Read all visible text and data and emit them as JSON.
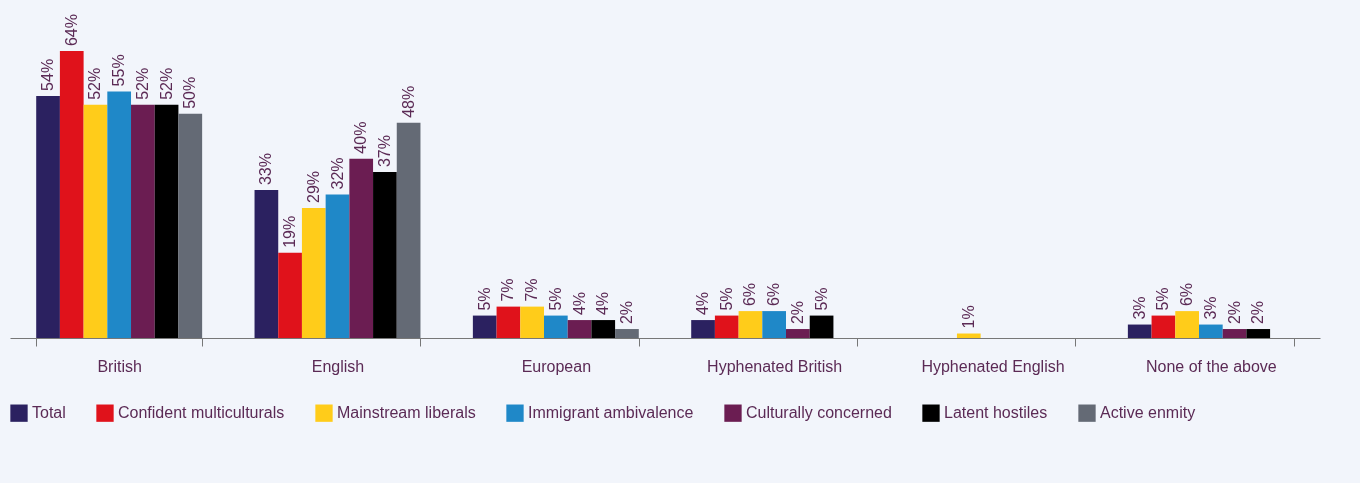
{
  "chart_data": {
    "type": "bar",
    "categories": [
      "British",
      "English",
      "European",
      "Hyphenated British",
      "Hyphenated English",
      "None of the above"
    ],
    "series": [
      {
        "name": "Total",
        "color": "#2b2160",
        "values": [
          54,
          33,
          5,
          4,
          null,
          3
        ],
        "value_labels": [
          "54%",
          "33%",
          "5%",
          "4%",
          null,
          "3%"
        ]
      },
      {
        "name": "Confident multiculturals",
        "color": "#e0121b",
        "values": [
          64,
          19,
          7,
          5,
          null,
          5
        ],
        "value_labels": [
          "64%",
          "19%",
          "7%",
          "5%",
          null,
          "5%"
        ]
      },
      {
        "name": "Mainstream liberals",
        "color": "#ffcc1a",
        "values": [
          52,
          29,
          7,
          6,
          1,
          6
        ],
        "value_labels": [
          "52%",
          "29%",
          "7%",
          "6%",
          "1%",
          "6%"
        ]
      },
      {
        "name": "Immigrant ambivalence",
        "color": "#1f88c8",
        "values": [
          55,
          32,
          5,
          6,
          null,
          3
        ],
        "value_labels": [
          "55%",
          "32%",
          "5%",
          "6%",
          null,
          "3%"
        ]
      },
      {
        "name": "Culturally concerned",
        "color": "#6b1d52",
        "values": [
          52,
          40,
          4,
          2,
          null,
          2
        ],
        "value_labels": [
          "52%",
          "40%",
          "4%",
          "2%",
          null,
          "2%"
        ]
      },
      {
        "name": "Latent hostiles",
        "color": "#000000",
        "values": [
          52,
          37,
          4,
          5,
          null,
          2
        ],
        "value_labels": [
          "52%",
          "37%",
          "4%",
          "5%",
          null,
          "2%"
        ]
      },
      {
        "name": "Active enmity",
        "color": "#646a75",
        "values": [
          50,
          48,
          2,
          null,
          null,
          null
        ],
        "value_labels": [
          "50%",
          "48%",
          "2%",
          null,
          null,
          null
        ]
      }
    ],
    "legend": "bottom"
  }
}
